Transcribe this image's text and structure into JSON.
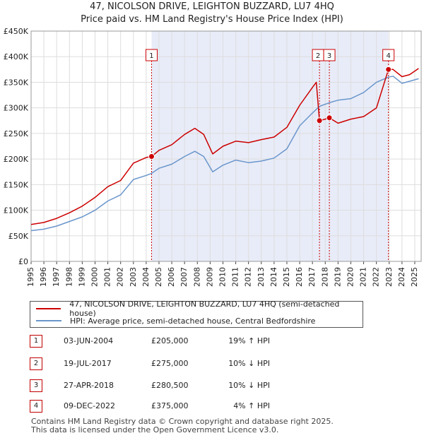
{
  "title_line1": "47, NICOLSON DRIVE, LEIGHTON BUZZARD, LU7 4HQ",
  "title_line2": "Price paid vs. HM Land Registry's House Price Index (HPI)",
  "colors": {
    "price": "#cc0000",
    "hpi": "#6a96cc",
    "shade": "#e8ecf8",
    "grid": "#dddddd",
    "marker": "#cc0000",
    "vline": "#cc0000"
  },
  "chart_data": {
    "type": "line",
    "x_range": [
      1995.0,
      2025.5
    ],
    "y_range": [
      0,
      450000
    ],
    "y_ticks": [
      0,
      50000,
      100000,
      150000,
      200000,
      250000,
      300000,
      350000,
      400000,
      450000
    ],
    "y_tick_labels": [
      "£0",
      "£50K",
      "£100K",
      "£150K",
      "£200K",
      "£250K",
      "£300K",
      "£350K",
      "£400K",
      "£450K"
    ],
    "x_ticks": [
      1995,
      1996,
      1997,
      1998,
      1999,
      2000,
      2001,
      2002,
      2003,
      2004,
      2005,
      2006,
      2007,
      2008,
      2009,
      2010,
      2011,
      2012,
      2013,
      2014,
      2015,
      2016,
      2017,
      2018,
      2019,
      2020,
      2021,
      2022,
      2023,
      2024,
      2025
    ],
    "x_tick_labels": [
      "1995",
      "1996",
      "1997",
      "1998",
      "1999",
      "2000",
      "2001",
      "2002",
      "2003",
      "2004",
      "2005",
      "2006",
      "2007",
      "2008",
      "2009",
      "2010",
      "2011",
      "2012",
      "2013",
      "2014",
      "2015",
      "2016",
      "2017",
      "2018",
      "2019",
      "2020",
      "2021",
      "2022",
      "2023",
      "2024",
      "2025"
    ],
    "shaded_ranges": [
      [
        2004.42,
        2022.94
      ]
    ],
    "series": [
      {
        "name": "47, NICOLSON DRIVE, LEIGHTON BUZZARD, LU7 4HQ (semi-detached house)",
        "color_key": "price",
        "x": [
          1995.0,
          1996.0,
          1997.0,
          1998.0,
          1999.0,
          2000.0,
          2001.0,
          2002.0,
          2003.0,
          2004.0,
          2004.42,
          2005.0,
          2006.0,
          2007.0,
          2007.8,
          2008.5,
          2009.2,
          2010.0,
          2011.0,
          2012.0,
          2013.0,
          2014.0,
          2015.0,
          2016.0,
          2017.0,
          2017.3,
          2017.55,
          2018.0,
          2018.32,
          2019.0,
          2020.0,
          2021.0,
          2022.0,
          2022.94,
          2023.3,
          2024.0,
          2024.6,
          2025.3
        ],
        "y": [
          72000,
          76000,
          84000,
          95000,
          108000,
          125000,
          146000,
          158000,
          192000,
          203000,
          205000,
          217000,
          228000,
          248000,
          260000,
          248000,
          210000,
          225000,
          235000,
          232000,
          238000,
          243000,
          262000,
          305000,
          340000,
          350000,
          275000,
          278000,
          280500,
          270000,
          278000,
          283000,
          300000,
          375000,
          375000,
          361000,
          365000,
          377000
        ]
      },
      {
        "name": "HPI: Average price, semi-detached house, Central Bedfordshire",
        "color_key": "hpi",
        "x": [
          1995.0,
          1996.0,
          1997.0,
          1998.0,
          1999.0,
          2000.0,
          2001.0,
          2002.0,
          2003.0,
          2004.0,
          2004.42,
          2005.0,
          2006.0,
          2007.0,
          2007.8,
          2008.5,
          2009.2,
          2010.0,
          2011.0,
          2012.0,
          2013.0,
          2014.0,
          2015.0,
          2016.0,
          2017.0,
          2017.55,
          2018.32,
          2019.0,
          2020.0,
          2021.0,
          2022.0,
          2022.94,
          2023.3,
          2024.0,
          2024.6,
          2025.3
        ],
        "y": [
          60000,
          63000,
          69000,
          78000,
          87000,
          100000,
          118000,
          130000,
          160000,
          168000,
          172000,
          182000,
          190000,
          205000,
          215000,
          205000,
          175000,
          188000,
          198000,
          193000,
          196000,
          202000,
          220000,
          265000,
          290000,
          303000,
          310000,
          315000,
          318000,
          330000,
          350000,
          360000,
          362000,
          348000,
          352000,
          357000
        ]
      }
    ],
    "sales": [
      {
        "num": "1",
        "x": 2004.42,
        "y": 205000
      },
      {
        "num": "2",
        "x": 2017.55,
        "y": 275000
      },
      {
        "num": "3",
        "x": 2018.32,
        "y": 280500
      },
      {
        "num": "4",
        "x": 2022.94,
        "y": 375000
      }
    ]
  },
  "legend": {
    "price_label": "47, NICOLSON DRIVE, LEIGHTON BUZZARD, LU7 4HQ (semi-detached house)",
    "hpi_label": "HPI: Average price, semi-detached house, Central Bedfordshire"
  },
  "transactions": [
    {
      "num": "1",
      "date": "03-JUN-2004",
      "price": "£205,000",
      "hpi": "19% ↑ HPI"
    },
    {
      "num": "2",
      "date": "19-JUL-2017",
      "price": "£275,000",
      "hpi": "10% ↓ HPI"
    },
    {
      "num": "3",
      "date": "27-APR-2018",
      "price": "£280,500",
      "hpi": "10% ↓ HPI"
    },
    {
      "num": "4",
      "date": "09-DEC-2022",
      "price": "£375,000",
      "hpi": "4% ↑ HPI"
    }
  ],
  "footer_line1": "Contains HM Land Registry data © Crown copyright and database right 2025.",
  "footer_line2": "This data is licensed under the Open Government Licence v3.0."
}
